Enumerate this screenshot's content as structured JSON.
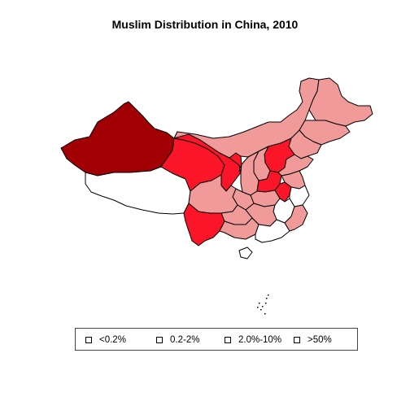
{
  "title": "Muslim Distribution in China, 2010",
  "legend": {
    "items": [
      {
        "label": "<0.2%"
      },
      {
        "label": "0.2-2%"
      },
      {
        "label": "2.0%-10%"
      },
      {
        "label": ">50%"
      }
    ]
  },
  "colors": {
    "lt_0_2": "#ffffff",
    "c_0_2_2": "#f19a9a",
    "c_2_10": "#fa1628",
    "gt_50": "#a10004",
    "border": "#000000"
  },
  "map": {
    "regions": [
      {
        "id": "xinjiang",
        "category": "gt_50"
      },
      {
        "id": "tibet",
        "category": "lt_0_2"
      },
      {
        "id": "qinghai",
        "category": "c_2_10"
      },
      {
        "id": "gansu",
        "category": "c_2_10"
      },
      {
        "id": "ningxia",
        "category": "c_2_10"
      },
      {
        "id": "inner-mongolia",
        "category": "c_0_2_2"
      },
      {
        "id": "heilongjiang",
        "category": "c_0_2_2"
      },
      {
        "id": "jilin",
        "category": "c_0_2_2"
      },
      {
        "id": "liaoning",
        "category": "c_0_2_2"
      },
      {
        "id": "hebei",
        "category": "c_2_10"
      },
      {
        "id": "shandong",
        "category": "c_0_2_2"
      },
      {
        "id": "henan",
        "category": "c_2_10"
      },
      {
        "id": "shaanxi",
        "category": "c_0_2_2"
      },
      {
        "id": "shanxi",
        "category": "c_0_2_2"
      },
      {
        "id": "sichuan",
        "category": "c_0_2_2"
      },
      {
        "id": "yunnan",
        "category": "c_2_10"
      },
      {
        "id": "guizhou",
        "category": "c_0_2_2"
      },
      {
        "id": "chongqing",
        "category": "c_0_2_2"
      },
      {
        "id": "hubei",
        "category": "c_0_2_2"
      },
      {
        "id": "anhui",
        "category": "c_2_10"
      },
      {
        "id": "jiangsu",
        "category": "c_0_2_2"
      },
      {
        "id": "zhejiang",
        "category": "lt_0_2"
      },
      {
        "id": "jiangxi",
        "category": "lt_0_2"
      },
      {
        "id": "hunan",
        "category": "c_0_2_2"
      },
      {
        "id": "guangxi",
        "category": "c_0_2_2"
      },
      {
        "id": "guangdong",
        "category": "lt_0_2"
      },
      {
        "id": "fujian",
        "category": "c_0_2_2"
      },
      {
        "id": "hainan",
        "category": "lt_0_2"
      }
    ]
  }
}
